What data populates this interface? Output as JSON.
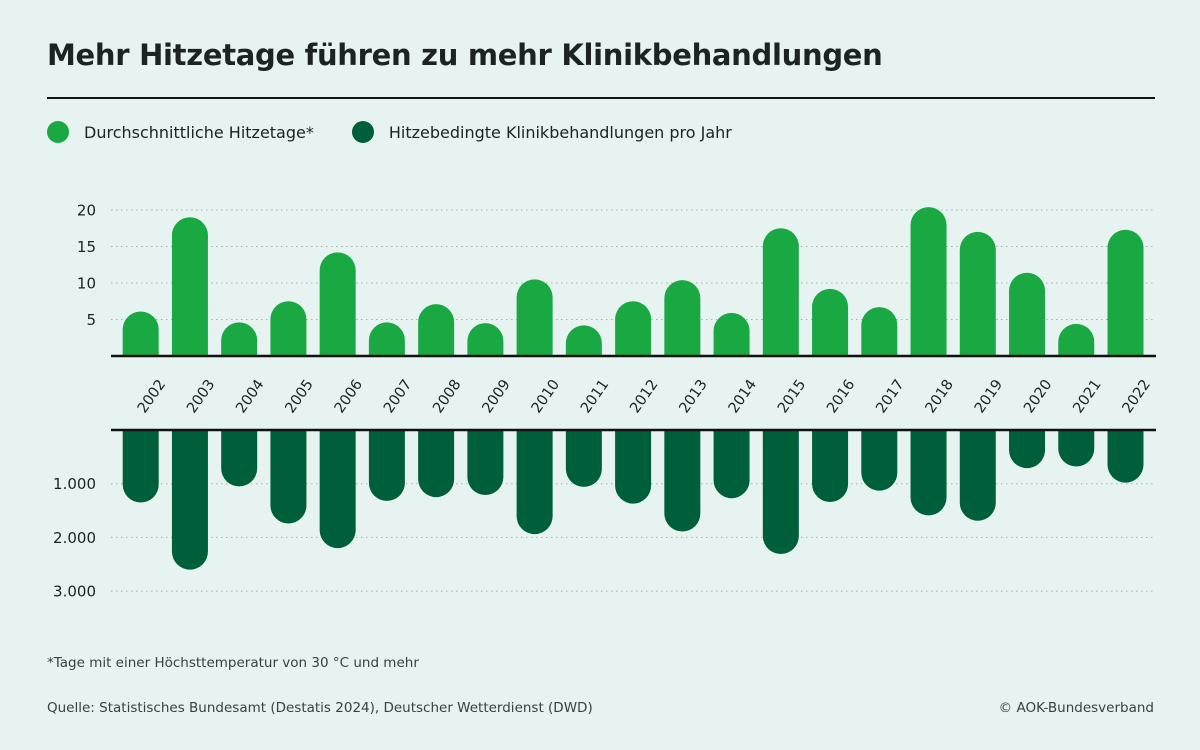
{
  "header": {
    "title": "Mehr Hitzetage führen zu mehr Klinikbehandlungen"
  },
  "legend": [
    {
      "label": "Durchschnittliche Hitzetage*",
      "color": "#1aa843"
    },
    {
      "label": "Hitzebedingte Klinikbehandlungen pro Jahr",
      "color": "#005f3b"
    }
  ],
  "footer": {
    "footnote": "*Tage mit einer Höchsttemperatur von 30 °C und mehr",
    "source": "Quelle: Statistisches Bundesamt (Destatis 2024), Deutscher Wetterdienst (DWD)",
    "copyright": "© AOK-Bundesverband"
  },
  "chart_data": [
    {
      "type": "bar",
      "title": "Durchschnittliche Hitzetage*",
      "xlabel": "",
      "ylabel": "",
      "categories": [
        "2002",
        "2003",
        "2004",
        "2005",
        "2006",
        "2007",
        "2008",
        "2009",
        "2010",
        "2011",
        "2012",
        "2013",
        "2014",
        "2015",
        "2016",
        "2017",
        "2018",
        "2019",
        "2020",
        "2021",
        "2022"
      ],
      "values": [
        6.1,
        19.0,
        4.6,
        7.5,
        14.2,
        4.6,
        7.1,
        4.5,
        10.5,
        4.2,
        7.5,
        10.4,
        5.9,
        17.5,
        9.2,
        6.7,
        20.4,
        17.0,
        11.4,
        4.4,
        17.3
      ],
      "ylim": [
        0,
        20
      ],
      "yticks": [
        5,
        10,
        15,
        20
      ],
      "ytick_labels": [
        "5",
        "10",
        "15",
        "20"
      ],
      "grid": true,
      "color": "#1aa843",
      "direction": "up"
    },
    {
      "type": "bar",
      "title": "Hitzebedingte Klinikbehandlungen pro Jahr",
      "xlabel": "",
      "ylabel": "",
      "categories": [
        "2002",
        "2003",
        "2004",
        "2005",
        "2006",
        "2007",
        "2008",
        "2009",
        "2010",
        "2011",
        "2012",
        "2013",
        "2014",
        "2015",
        "2016",
        "2017",
        "2018",
        "2019",
        "2020",
        "2021",
        "2022"
      ],
      "values": [
        1350,
        2600,
        1050,
        1740,
        2200,
        1320,
        1250,
        1210,
        1940,
        1060,
        1370,
        1890,
        1270,
        2310,
        1340,
        1130,
        1590,
        1690,
        710,
        680,
        980
      ],
      "ylim": [
        0,
        3000
      ],
      "yticks": [
        1000,
        2000,
        3000
      ],
      "ytick_labels": [
        "1.000",
        "2.000",
        "3.000"
      ],
      "grid": true,
      "color": "#005f3b",
      "direction": "down"
    }
  ]
}
